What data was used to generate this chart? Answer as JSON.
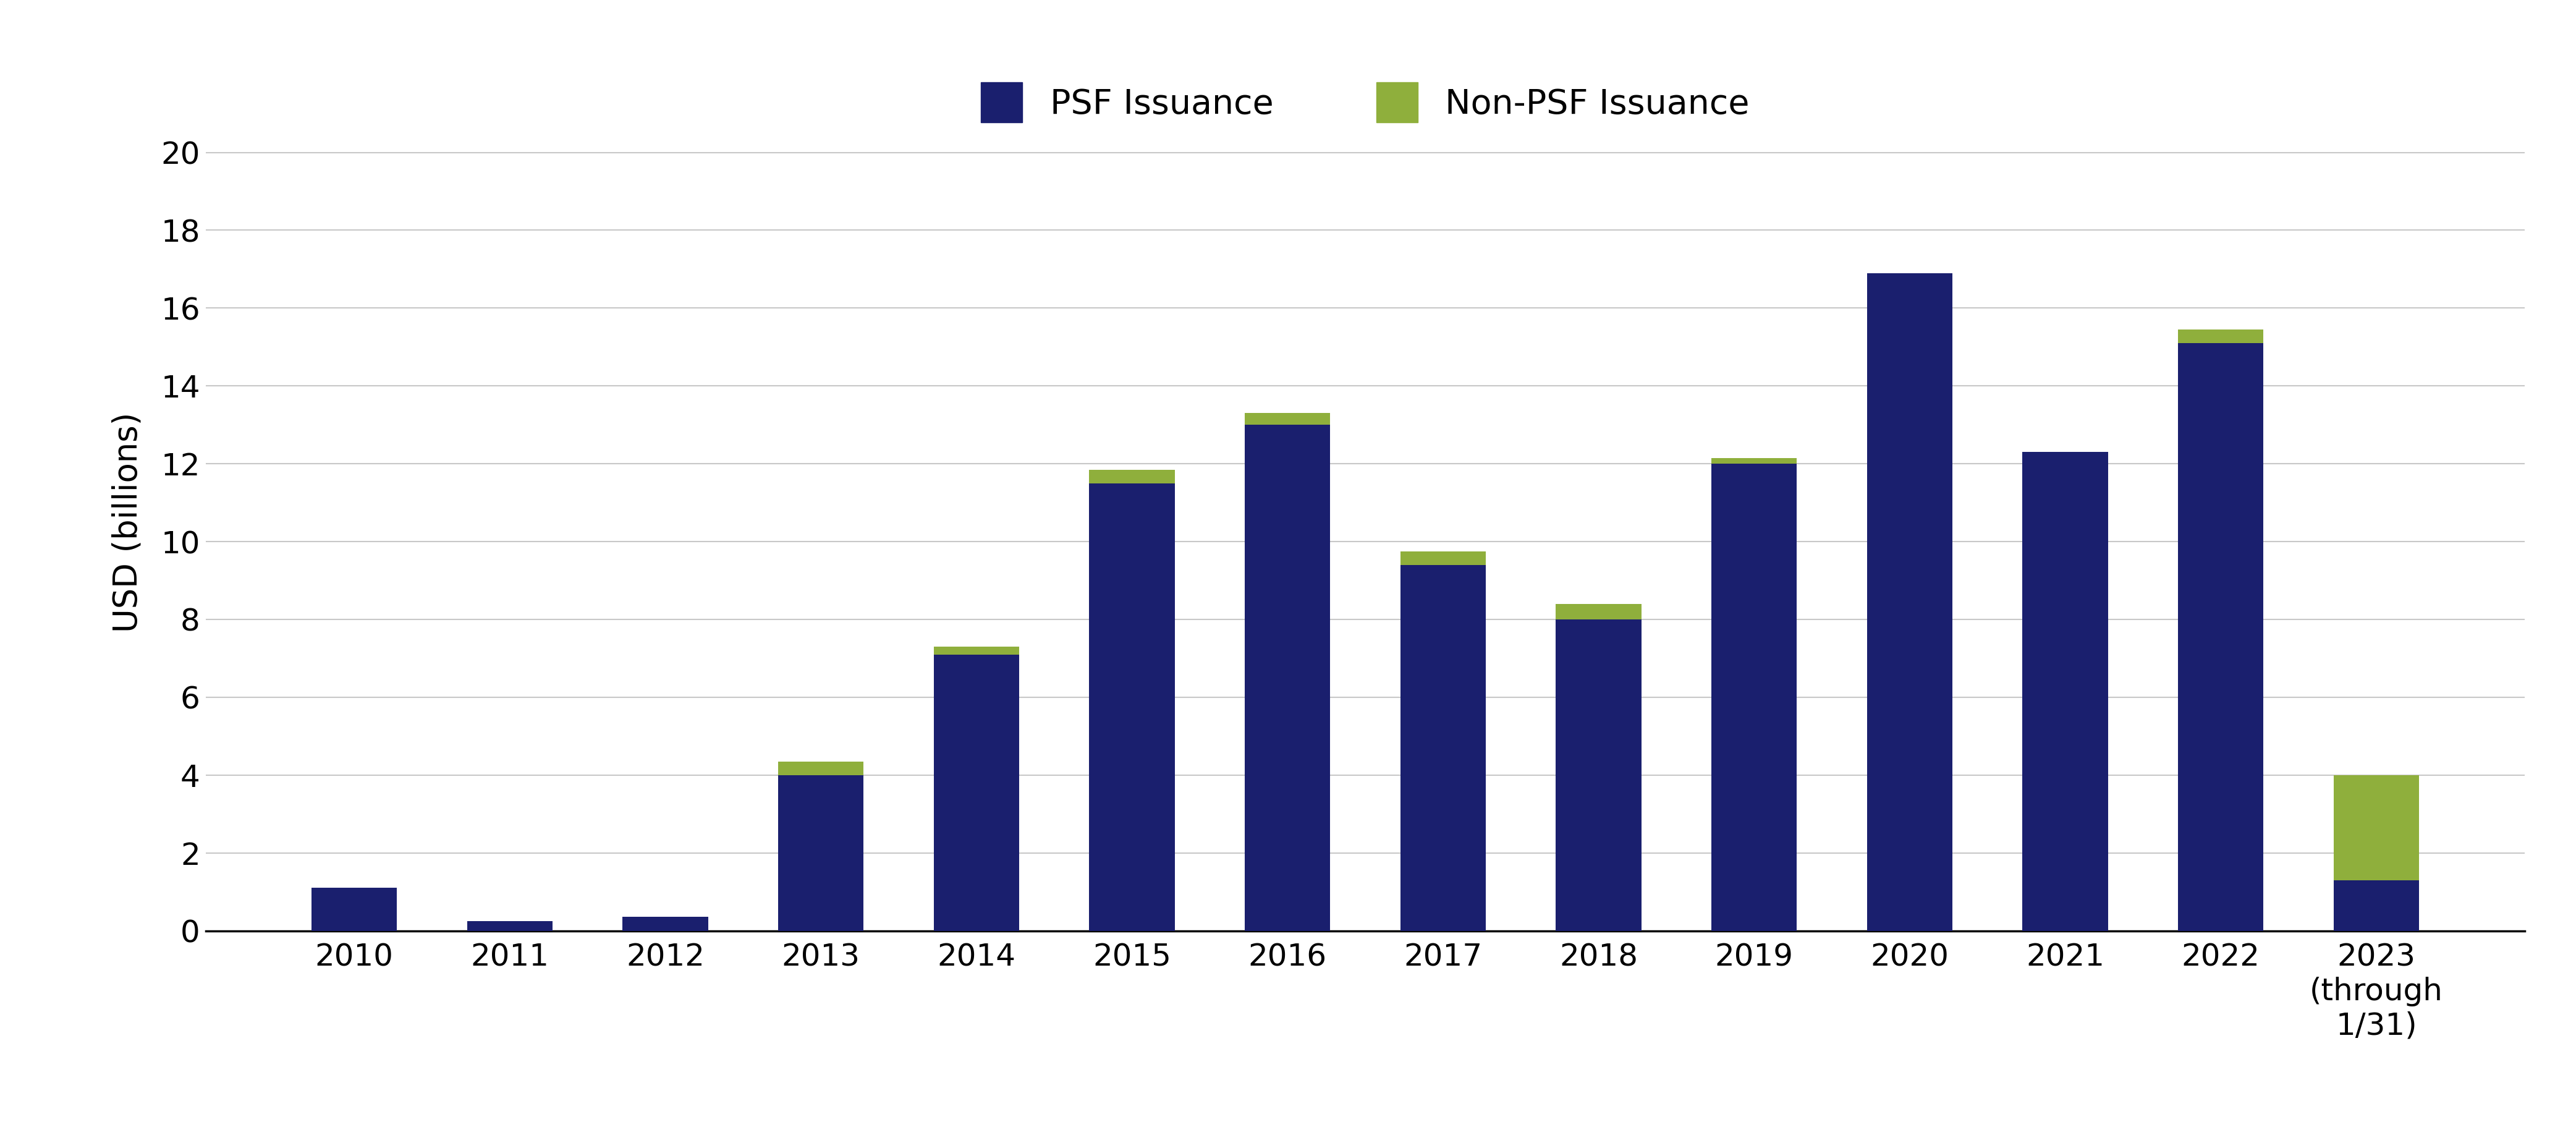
{
  "years": [
    "2010",
    "2011",
    "2012",
    "2013",
    "2014",
    "2015",
    "2016",
    "2017",
    "2018",
    "2019",
    "2020",
    "2021",
    "2022",
    "2023\n(through\n1/31)"
  ],
  "psf_values": [
    1.1,
    0.25,
    0.35,
    4.0,
    7.1,
    11.5,
    13.0,
    9.4,
    8.0,
    12.0,
    16.9,
    12.3,
    15.1,
    1.3
  ],
  "nonpsf_values": [
    0.0,
    0.0,
    0.0,
    0.35,
    0.2,
    0.35,
    0.3,
    0.35,
    0.4,
    0.15,
    0.0,
    0.0,
    0.35,
    2.7
  ],
  "psf_color": "#1a1f6e",
  "nonpsf_color": "#8faf3c",
  "ylabel": "USD (billions)",
  "ylim": [
    0,
    21
  ],
  "yticks": [
    0,
    2,
    4,
    6,
    8,
    10,
    12,
    14,
    16,
    18,
    20
  ],
  "legend_labels": [
    "PSF Issuance",
    "Non-PSF Issuance"
  ],
  "background_color": "#ffffff",
  "grid_color": "#c8c8c8",
  "bar_width": 0.55,
  "axis_fontsize": 38,
  "tick_fontsize": 36,
  "legend_fontsize": 40
}
